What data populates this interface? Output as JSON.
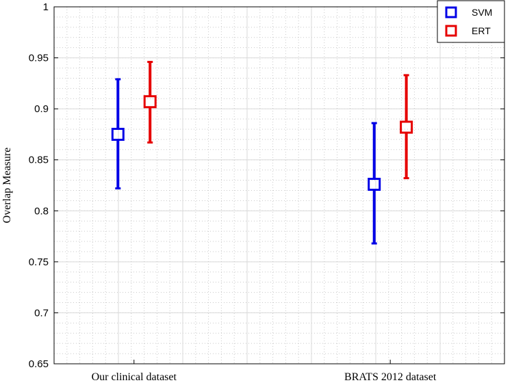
{
  "chart_data": {
    "type": "errorbar",
    "title": "",
    "xlabel": "",
    "ylabel": "Overlap Measure",
    "ylim": [
      0.65,
      1.0
    ],
    "yticks": [
      0.65,
      0.7,
      0.75,
      0.8,
      0.85,
      0.9,
      0.95,
      1
    ],
    "ytick_labels": [
      "0.65",
      "0.7",
      "0.75",
      "0.8",
      "0.85",
      "0.9",
      "0.95",
      "1"
    ],
    "categories": [
      "Our clinical dataset",
      "BRATS 2012 dataset"
    ],
    "grid": true,
    "legend_position": "top-right",
    "series": [
      {
        "name": "SVM",
        "color": "#0000e6",
        "marker": "square",
        "points": [
          {
            "category": "Our clinical dataset",
            "mean": 0.875,
            "low": 0.822,
            "high": 0.929
          },
          {
            "category": "BRATS 2012 dataset",
            "mean": 0.826,
            "low": 0.768,
            "high": 0.886
          }
        ]
      },
      {
        "name": "ERT",
        "color": "#e60000",
        "marker": "square",
        "points": [
          {
            "category": "Our clinical dataset",
            "mean": 0.907,
            "low": 0.867,
            "high": 0.946
          },
          {
            "category": "BRATS 2012 dataset",
            "mean": 0.882,
            "low": 0.832,
            "high": 0.933
          }
        ]
      }
    ]
  }
}
